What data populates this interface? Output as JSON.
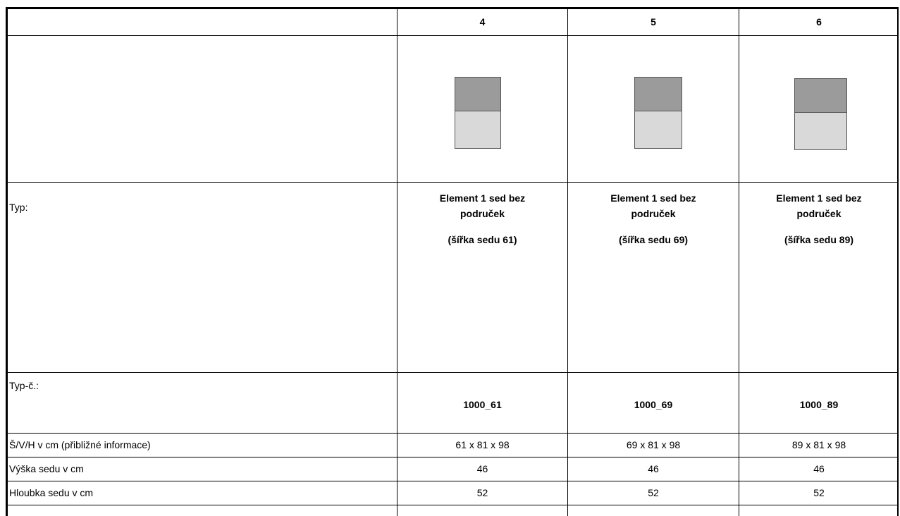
{
  "columns": [
    {
      "header": "4",
      "icon": "seat-element-icon",
      "typ_line1": "Element 1 sed bez",
      "typ_line2": "područek",
      "typ_note": "(šířka sedu 61)",
      "typ_no": "1000_61",
      "dims": "61 x 81 x 98",
      "seat_height": "46",
      "seat_depth": "52"
    },
    {
      "header": "5",
      "icon": "seat-element-icon",
      "typ_line1": "Element 1 sed bez",
      "typ_line2": "područek",
      "typ_note": "(šířka sedu 69)",
      "typ_no": "1000_69",
      "dims": "69 x 81 x 98",
      "seat_height": "46",
      "seat_depth": "52"
    },
    {
      "header": "6",
      "icon": "seat-element-icon",
      "typ_line1": "Element 1 sed bez",
      "typ_line2": "područek",
      "typ_note": "(šířka sedu 89)",
      "typ_no": "1000_89",
      "dims": "89 x 81 x 98",
      "seat_height": "46",
      "seat_depth": "52"
    }
  ],
  "labels": {
    "typ": "Typ:",
    "typ_no": "Typ-č.:",
    "dims": "Š/V/H v cm  (přibližné informace)",
    "seat_height": "Výška sedu v cm",
    "seat_depth": "Hloubka sedu v cm"
  },
  "colors": {
    "backrest": "#9b9b9b",
    "seat": "#d9d9d9",
    "grid": "#000000"
  }
}
